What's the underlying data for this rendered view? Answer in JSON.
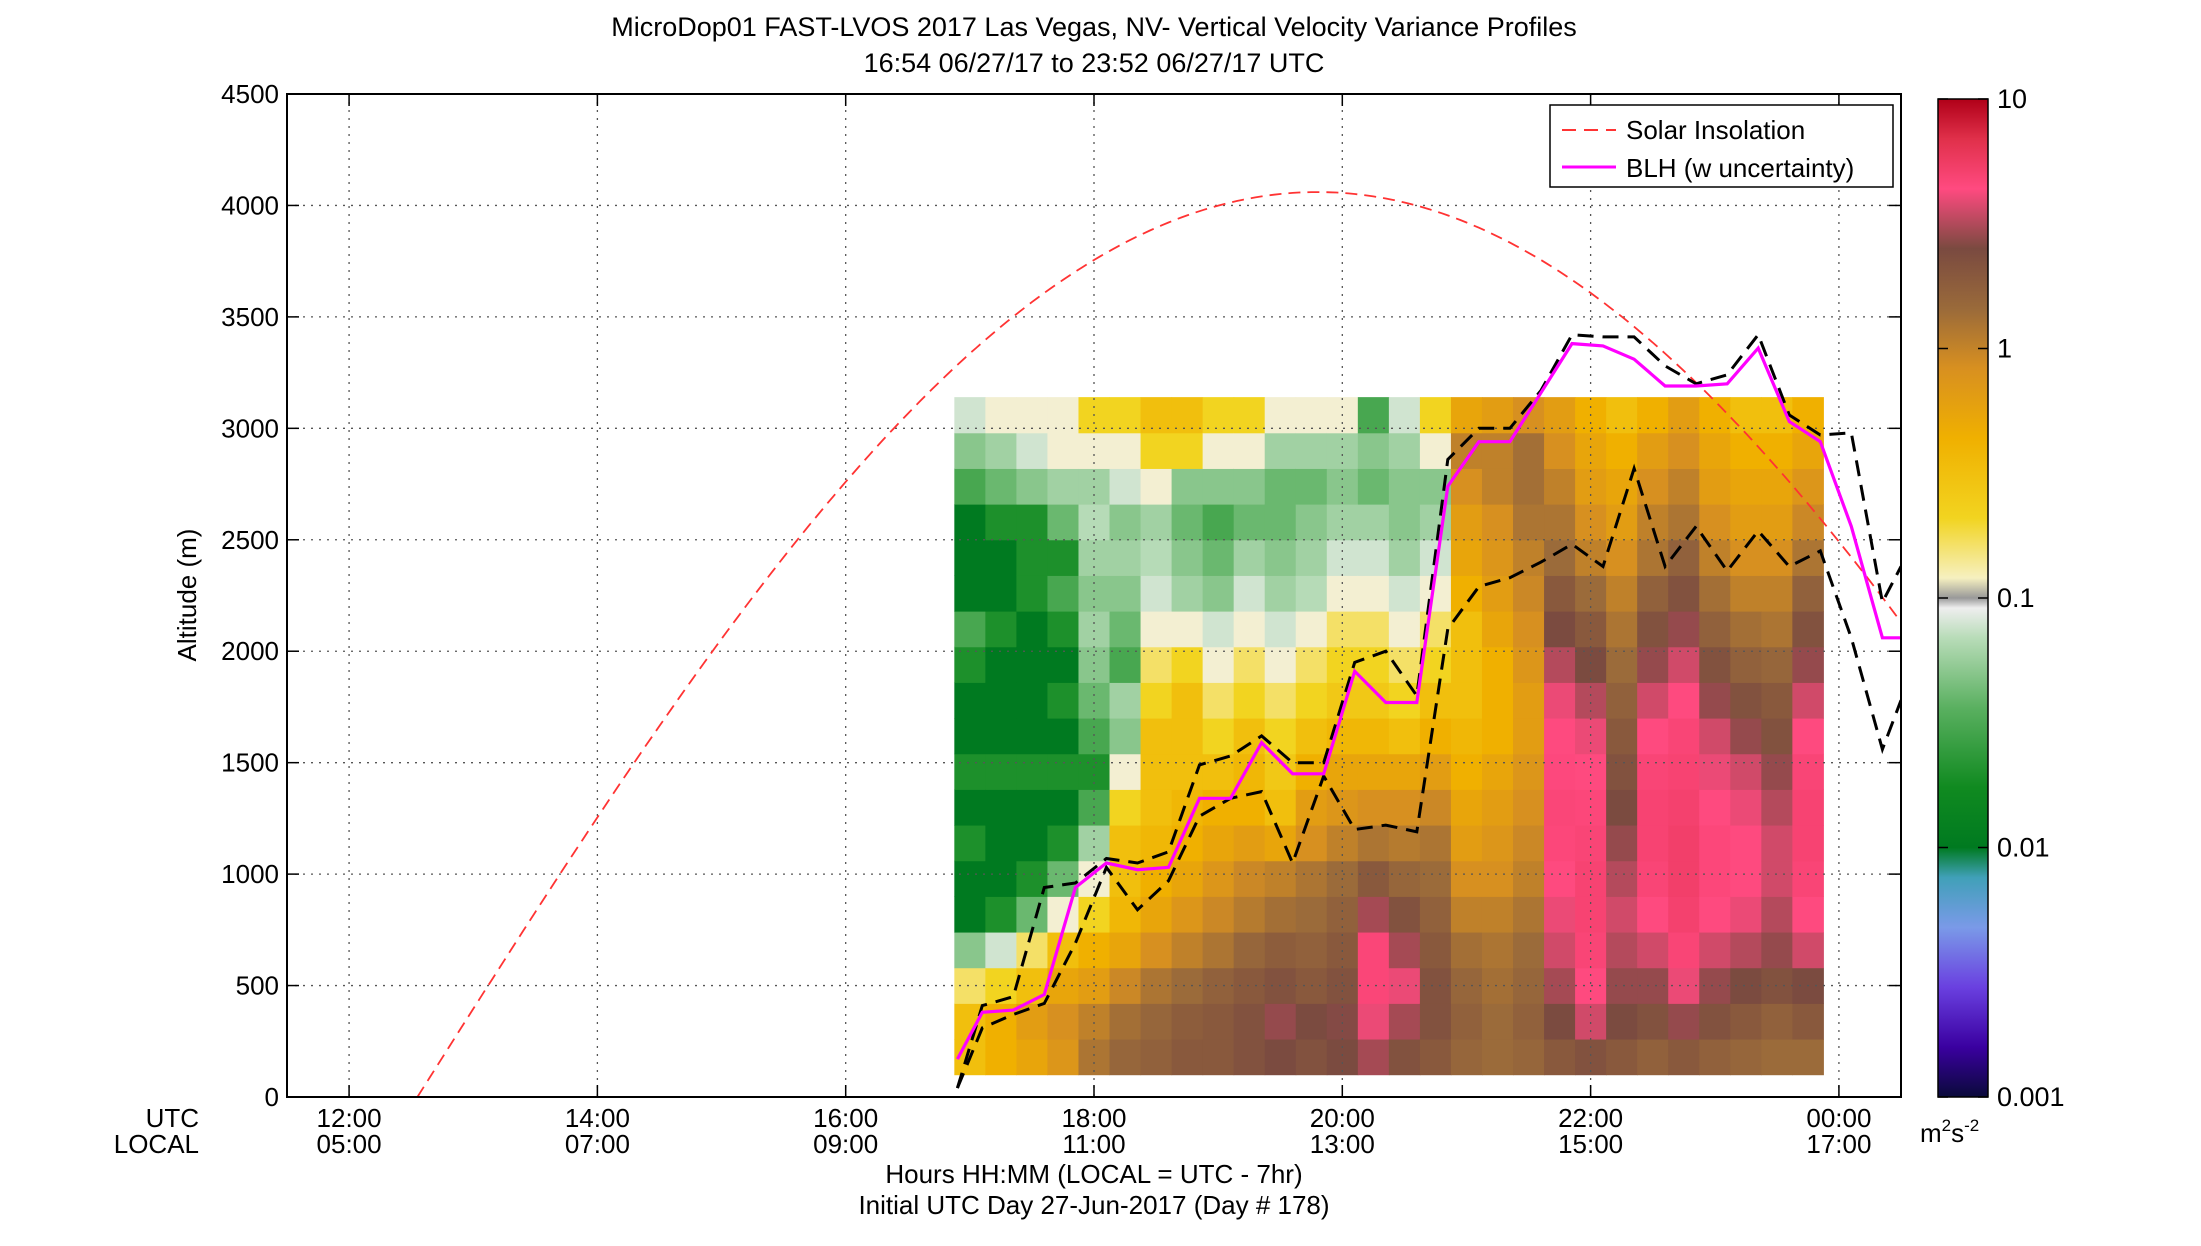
{
  "chart_data": {
    "type": "heatmap",
    "title": "MicroDop01 FAST-LVOS 2017 Las Vegas, NV- Vertical Velocity Variance Profiles",
    "subtitle": "16:54 06/27/17 to 23:52 06/27/17  UTC",
    "ylabel": "Altitude (m)",
    "xlabel": "Hours HH:MM  (LOCAL = UTC - 7hr)",
    "xlabel2": "Initial UTC Day 27-Jun-2017 (Day # 178)",
    "row_labels": {
      "utc": "UTC",
      "local": "LOCAL"
    },
    "xlim_hours_utc": [
      11.5,
      24.5
    ],
    "ylim": [
      0,
      4500
    ],
    "grid": true,
    "x_ticks": [
      {
        "h": 12,
        "utc": "12:00",
        "local": "05:00"
      },
      {
        "h": 14,
        "utc": "14:00",
        "local": "07:00"
      },
      {
        "h": 16,
        "utc": "16:00",
        "local": "09:00"
      },
      {
        "h": 18,
        "utc": "18:00",
        "local": "11:00"
      },
      {
        "h": 20,
        "utc": "20:00",
        "local": "13:00"
      },
      {
        "h": 22,
        "utc": "22:00",
        "local": "15:00"
      },
      {
        "h": 24,
        "utc": "00:00",
        "local": "17:00"
      }
    ],
    "y_ticks": [
      0,
      500,
      1000,
      1500,
      2000,
      2500,
      3000,
      3500,
      4000,
      4500
    ],
    "colorbar": {
      "scale": "log",
      "range": [
        0.001,
        10
      ],
      "tick_labels": [
        "10",
        "1",
        "0.1",
        "0.01",
        "0.001"
      ],
      "unit_main": "m",
      "unit_sup1": "2",
      "unit_mid": "s",
      "unit_sup2": "-2"
    },
    "legend": {
      "position": "top-right",
      "entries": [
        {
          "label": "Solar Insolation",
          "color": "#ff3333",
          "style": "dashed"
        },
        {
          "label": "BLH (w uncertainty)",
          "color": "#ff00ff",
          "style": "solid"
        }
      ]
    },
    "blh_series": {
      "name": "BLH (w uncertainty)",
      "x": [
        16.9,
        17.1,
        17.35,
        17.6,
        17.85,
        18.1,
        18.35,
        18.6,
        18.85,
        19.1,
        19.35,
        19.6,
        19.85,
        20.1,
        20.35,
        20.6,
        20.85,
        21.1,
        21.35,
        21.6,
        21.85,
        22.1,
        22.35,
        22.6,
        22.85,
        23.1,
        23.35,
        23.6,
        23.85,
        24.1,
        24.35,
        24.5
      ],
      "y": [
        170,
        380,
        390,
        460,
        940,
        1050,
        1020,
        1030,
        1340,
        1340,
        1590,
        1450,
        1450,
        1910,
        1770,
        1770,
        2740,
        2940,
        2940,
        3160,
        3380,
        3370,
        3310,
        3190,
        3190,
        3200,
        3360,
        3030,
        2940,
        2560,
        2060,
        2060
      ]
    },
    "blh_upper": {
      "x": [
        16.9,
        17.1,
        17.35,
        17.6,
        17.85,
        18.1,
        18.35,
        18.6,
        18.85,
        19.1,
        19.35,
        19.6,
        19.85,
        20.1,
        20.35,
        20.6,
        20.85,
        21.1,
        21.35,
        21.6,
        21.85,
        22.1,
        22.35,
        22.6,
        22.85,
        23.1,
        23.35,
        23.6,
        23.85,
        24.1,
        24.35,
        24.5
      ],
      "y": [
        40,
        410,
        450,
        940,
        960,
        1070,
        1050,
        1100,
        1490,
        1530,
        1620,
        1500,
        1500,
        1950,
        2000,
        1800,
        2860,
        3000,
        3000,
        3170,
        3420,
        3410,
        3410,
        3280,
        3200,
        3240,
        3420,
        3060,
        2970,
        2980,
        2220,
        2380
      ]
    },
    "blh_lower": {
      "x": [
        16.9,
        17.1,
        17.35,
        17.6,
        17.85,
        18.1,
        18.35,
        18.6,
        18.85,
        19.1,
        19.35,
        19.6,
        19.85,
        20.1,
        20.35,
        20.6,
        20.85,
        21.1,
        21.35,
        21.6,
        21.85,
        22.1,
        22.35,
        22.6,
        22.85,
        23.1,
        23.35,
        23.6,
        23.85,
        24.1,
        24.35,
        24.5
      ],
      "y": [
        40,
        310,
        370,
        420,
        690,
        1030,
        840,
        970,
        1260,
        1340,
        1370,
        1050,
        1440,
        1200,
        1220,
        1190,
        2100,
        2290,
        2330,
        2400,
        2480,
        2380,
        2820,
        2380,
        2560,
        2360,
        2540,
        2380,
        2450,
        2060,
        1560,
        1780
      ]
    },
    "solar_insolation": {
      "name": "Solar Insolation",
      "peak_hour_utc": 19.8,
      "half_width_hours": 7.25,
      "peak_value": 4060
    },
    "variance_columns": [
      {
        "x": 17.0,
        "profile": [
          0.3,
          0.3,
          0.15,
          0.05,
          0.01,
          0.01,
          0.02,
          0.01,
          0.02,
          0.01,
          0.01,
          0.02,
          0.03,
          0.01,
          0.01,
          0.01,
          0.03,
          0.05,
          0.08
        ]
      },
      {
        "x": 17.25,
        "profile": [
          0.4,
          0.4,
          0.2,
          0.08,
          0.02,
          0.01,
          0.01,
          0.01,
          0.02,
          0.01,
          0.01,
          0.01,
          0.02,
          0.01,
          0.01,
          0.02,
          0.04,
          0.06,
          0.1
        ]
      },
      {
        "x": 17.5,
        "profile": [
          0.5,
          0.6,
          0.3,
          0.15,
          0.04,
          0.02,
          0.01,
          0.01,
          0.02,
          0.01,
          0.01,
          0.01,
          0.01,
          0.02,
          0.02,
          0.02,
          0.05,
          0.08,
          0.1
        ]
      },
      {
        "x": 17.75,
        "profile": [
          0.7,
          0.8,
          0.5,
          0.3,
          0.1,
          0.04,
          0.02,
          0.01,
          0.02,
          0.01,
          0.02,
          0.01,
          0.02,
          0.03,
          0.02,
          0.04,
          0.06,
          0.1,
          0.1
        ]
      },
      {
        "x": 18.0,
        "profile": [
          1.2,
          1.0,
          0.6,
          0.4,
          0.2,
          0.1,
          0.06,
          0.03,
          0.02,
          0.03,
          0.04,
          0.05,
          0.06,
          0.05,
          0.06,
          0.07,
          0.06,
          0.1,
          0.2
        ]
      },
      {
        "x": 18.25,
        "profile": [
          1.5,
          1.3,
          0.9,
          0.5,
          0.35,
          0.3,
          0.3,
          0.2,
          0.1,
          0.05,
          0.06,
          0.03,
          0.04,
          0.05,
          0.06,
          0.05,
          0.08,
          0.1,
          0.2
        ]
      },
      {
        "x": 18.5,
        "profile": [
          1.6,
          1.5,
          1.2,
          0.8,
          0.5,
          0.4,
          0.35,
          0.3,
          0.3,
          0.3,
          0.2,
          0.15,
          0.1,
          0.08,
          0.07,
          0.06,
          0.1,
          0.2,
          0.3
        ]
      },
      {
        "x": 18.75,
        "profile": [
          1.8,
          1.7,
          1.4,
          1.0,
          0.7,
          0.5,
          0.4,
          0.35,
          0.3,
          0.3,
          0.3,
          0.2,
          0.1,
          0.06,
          0.05,
          0.04,
          0.05,
          0.2,
          0.3
        ]
      },
      {
        "x": 19.0,
        "profile": [
          1.8,
          1.8,
          1.6,
          1.2,
          0.9,
          0.7,
          0.5,
          0.4,
          0.3,
          0.2,
          0.15,
          0.1,
          0.08,
          0.05,
          0.04,
          0.03,
          0.05,
          0.1,
          0.2
        ]
      },
      {
        "x": 19.25,
        "profile": [
          2.0,
          2.0,
          1.8,
          1.5,
          1.1,
          0.9,
          0.6,
          0.4,
          0.35,
          0.3,
          0.2,
          0.15,
          0.1,
          0.08,
          0.06,
          0.04,
          0.05,
          0.1,
          0.2
        ]
      },
      {
        "x": 19.5,
        "profile": [
          2.2,
          2.4,
          2.0,
          1.7,
          1.3,
          1.0,
          0.5,
          0.3,
          0.25,
          0.2,
          0.15,
          0.1,
          0.08,
          0.06,
          0.05,
          0.04,
          0.04,
          0.06,
          0.1
        ]
      },
      {
        "x": 19.75,
        "profile": [
          2.0,
          2.2,
          1.8,
          1.6,
          1.4,
          1.2,
          0.8,
          0.6,
          0.4,
          0.3,
          0.2,
          0.15,
          0.1,
          0.07,
          0.06,
          0.05,
          0.04,
          0.06,
          0.1
        ]
      },
      {
        "x": 20.0,
        "profile": [
          2.2,
          2.3,
          2.0,
          1.8,
          1.6,
          1.4,
          1.0,
          0.7,
          0.5,
          0.35,
          0.25,
          0.2,
          0.15,
          0.1,
          0.08,
          0.06,
          0.05,
          0.06,
          0.1
        ]
      },
      {
        "x": 20.25,
        "profile": [
          2.5,
          3.0,
          3.5,
          3.5,
          2.5,
          1.8,
          1.2,
          0.8,
          0.5,
          0.35,
          0.25,
          0.2,
          0.15,
          0.1,
          0.08,
          0.06,
          0.04,
          0.05,
          0.03
        ]
      },
      {
        "x": 20.5,
        "profile": [
          2.0,
          2.5,
          3.0,
          2.5,
          2.0,
          1.5,
          1.1,
          0.8,
          0.5,
          0.3,
          0.2,
          0.15,
          0.1,
          0.08,
          0.06,
          0.05,
          0.05,
          0.06,
          0.08
        ]
      },
      {
        "x": 20.75,
        "profile": [
          1.8,
          2.0,
          2.0,
          1.8,
          1.6,
          1.4,
          1.2,
          0.9,
          0.6,
          0.4,
          0.3,
          0.2,
          0.15,
          0.1,
          0.08,
          0.06,
          0.05,
          0.1,
          0.2
        ]
      },
      {
        "x": 21.0,
        "profile": [
          1.5,
          1.6,
          1.5,
          1.3,
          1.0,
          0.8,
          0.6,
          0.5,
          0.4,
          0.35,
          0.3,
          0.3,
          0.3,
          0.4,
          0.5,
          0.6,
          0.8,
          1.0,
          0.5
        ]
      },
      {
        "x": 21.25,
        "profile": [
          1.4,
          1.4,
          1.3,
          1.2,
          1.0,
          0.8,
          0.7,
          0.6,
          0.5,
          0.4,
          0.4,
          0.4,
          0.5,
          0.6,
          0.7,
          0.8,
          1.0,
          1.0,
          0.6
        ]
      },
      {
        "x": 21.5,
        "profile": [
          1.5,
          1.6,
          1.5,
          1.4,
          1.2,
          1.0,
          0.9,
          0.8,
          0.7,
          0.6,
          0.6,
          0.7,
          0.8,
          0.9,
          1.0,
          1.2,
          1.3,
          1.3,
          0.8
        ]
      },
      {
        "x": 21.75,
        "profile": [
          1.8,
          2.2,
          2.5,
          2.8,
          3.0,
          3.2,
          3.4,
          3.5,
          3.3,
          3.2,
          3.0,
          2.6,
          2.2,
          1.8,
          1.4,
          1.2,
          1.0,
          0.8,
          0.6
        ]
      },
      {
        "x": 22.0,
        "profile": [
          2.0,
          2.8,
          3.2,
          3.6,
          3.8,
          3.8,
          3.6,
          3.4,
          3.2,
          3.0,
          2.6,
          2.2,
          1.8,
          1.4,
          1.0,
          0.8,
          0.6,
          0.5,
          0.4
        ]
      },
      {
        "x": 22.25,
        "profile": [
          1.8,
          2.2,
          2.4,
          2.6,
          2.8,
          2.6,
          2.4,
          2.2,
          2.0,
          1.8,
          1.6,
          1.4,
          1.2,
          1.0,
          0.8,
          0.6,
          0.5,
          0.4,
          0.3
        ]
      },
      {
        "x": 22.5,
        "profile": [
          1.6,
          2.0,
          2.4,
          2.8,
          3.2,
          3.6,
          3.8,
          3.8,
          3.6,
          3.2,
          2.8,
          2.4,
          2.0,
          1.6,
          1.2,
          1.0,
          0.8,
          0.6,
          0.4
        ]
      },
      {
        "x": 22.75,
        "profile": [
          1.8,
          2.4,
          3.0,
          3.6,
          4.0,
          4.2,
          4.2,
          4.0,
          3.8,
          3.6,
          3.2,
          2.8,
          2.4,
          2.0,
          1.6,
          1.2,
          1.0,
          0.8,
          0.6
        ]
      },
      {
        "x": 23.0,
        "profile": [
          1.6,
          2.0,
          2.4,
          2.8,
          3.2,
          3.4,
          3.4,
          3.2,
          3.0,
          2.8,
          2.4,
          2.0,
          1.6,
          1.3,
          1.0,
          0.8,
          0.6,
          0.5,
          0.4
        ]
      },
      {
        "x": 23.25,
        "profile": [
          1.5,
          1.8,
          2.2,
          2.6,
          3.0,
          3.2,
          3.2,
          3.0,
          2.8,
          2.4,
          2.0,
          1.6,
          1.3,
          1.0,
          0.8,
          0.6,
          0.5,
          0.4,
          0.3
        ]
      },
      {
        "x": 23.5,
        "profile": [
          1.4,
          1.6,
          2.0,
          2.4,
          2.6,
          2.8,
          2.8,
          2.6,
          2.4,
          2.0,
          1.8,
          1.5,
          1.2,
          1.0,
          0.8,
          0.6,
          0.5,
          0.4,
          0.3
        ]
      },
      {
        "x": 23.75,
        "profile": [
          1.4,
          1.8,
          2.2,
          2.8,
          3.2,
          3.6,
          3.8,
          3.8,
          3.6,
          3.2,
          2.8,
          2.4,
          2.0,
          1.6,
          1.2,
          0.9,
          0.7,
          0.5,
          0.4
        ]
      }
    ]
  }
}
